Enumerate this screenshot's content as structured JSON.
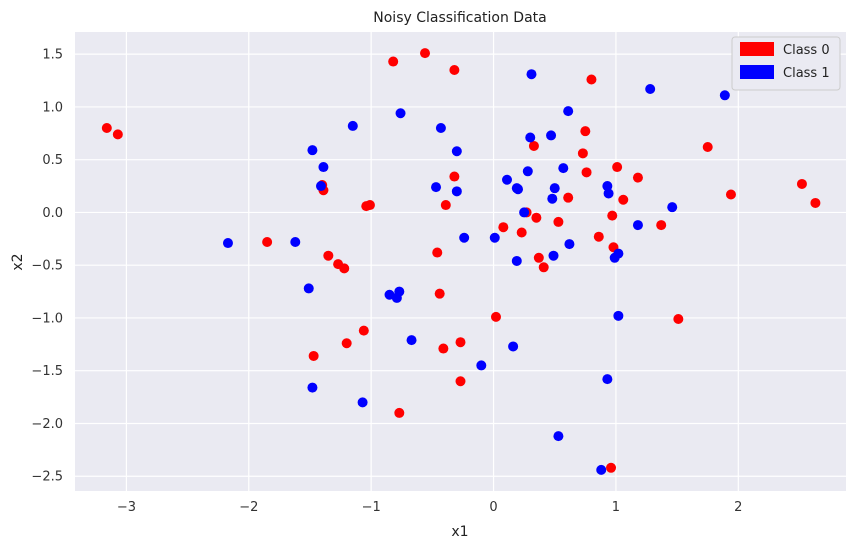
{
  "chart_data": {
    "type": "scatter",
    "title": "Noisy Classification Data",
    "xlabel": "x1",
    "ylabel": "x2",
    "xlim": [
      -3.42,
      2.88
    ],
    "ylim": [
      -2.64,
      1.71
    ],
    "xticks": [
      -3,
      -2,
      -1,
      0,
      1,
      2
    ],
    "yticks": [
      -2.5,
      -2.0,
      -1.5,
      -1.0,
      -0.5,
      0.0,
      0.5,
      1.0,
      1.5
    ],
    "grid": true,
    "legend_position": "top-right",
    "series": [
      {
        "name": "Class 0",
        "color": "#ff0000",
        "points": [
          [
            -3.16,
            0.8
          ],
          [
            -3.07,
            0.74
          ],
          [
            -1.85,
            -0.28
          ],
          [
            -1.4,
            0.26
          ],
          [
            -1.39,
            0.21
          ],
          [
            -1.35,
            -0.41
          ],
          [
            -1.27,
            -0.49
          ],
          [
            -1.22,
            -0.53
          ],
          [
            -1.2,
            -1.24
          ],
          [
            -1.47,
            -1.36
          ],
          [
            -1.06,
            -1.12
          ],
          [
            -1.04,
            0.06
          ],
          [
            -1.01,
            0.07
          ],
          [
            -0.82,
            1.43
          ],
          [
            -0.77,
            -1.9
          ],
          [
            -0.56,
            1.51
          ],
          [
            -0.46,
            -0.38
          ],
          [
            -0.44,
            -0.77
          ],
          [
            -0.41,
            -1.29
          ],
          [
            -0.39,
            0.07
          ],
          [
            -0.32,
            1.35
          ],
          [
            -0.32,
            0.34
          ],
          [
            -0.27,
            -1.23
          ],
          [
            -0.27,
            -1.6
          ],
          [
            0.02,
            -0.99
          ],
          [
            0.08,
            -0.14
          ],
          [
            0.23,
            -0.19
          ],
          [
            0.27,
            0.0
          ],
          [
            0.33,
            0.63
          ],
          [
            0.35,
            -0.05
          ],
          [
            0.37,
            -0.43
          ],
          [
            0.41,
            -0.52
          ],
          [
            0.53,
            -0.09
          ],
          [
            0.61,
            0.14
          ],
          [
            0.73,
            0.56
          ],
          [
            0.75,
            0.77
          ],
          [
            0.76,
            0.38
          ],
          [
            0.8,
            1.26
          ],
          [
            0.86,
            -0.23
          ],
          [
            0.97,
            -0.03
          ],
          [
            0.98,
            -0.33
          ],
          [
            1.01,
            0.43
          ],
          [
            1.06,
            0.12
          ],
          [
            1.18,
            0.33
          ],
          [
            1.37,
            -0.12
          ],
          [
            1.51,
            -1.01
          ],
          [
            1.75,
            0.62
          ],
          [
            1.94,
            0.17
          ],
          [
            2.52,
            0.27
          ],
          [
            2.63,
            0.09
          ],
          [
            0.96,
            -2.42
          ]
        ]
      },
      {
        "name": "Class 1",
        "color": "#0000ff",
        "points": [
          [
            -2.17,
            -0.29
          ],
          [
            -1.62,
            -0.28
          ],
          [
            -1.51,
            -0.72
          ],
          [
            -1.48,
            0.59
          ],
          [
            -1.48,
            -1.66
          ],
          [
            -1.41,
            0.25
          ],
          [
            -1.39,
            0.43
          ],
          [
            -1.15,
            0.82
          ],
          [
            -1.07,
            -1.8
          ],
          [
            -0.85,
            -0.78
          ],
          [
            -0.79,
            -0.81
          ],
          [
            -0.77,
            -0.75
          ],
          [
            -0.76,
            0.94
          ],
          [
            -0.67,
            -1.21
          ],
          [
            -0.47,
            0.24
          ],
          [
            -0.43,
            0.8
          ],
          [
            -0.3,
            0.58
          ],
          [
            -0.3,
            0.2
          ],
          [
            -0.24,
            -0.24
          ],
          [
            -0.1,
            -1.45
          ],
          [
            0.01,
            -0.24
          ],
          [
            0.11,
            0.31
          ],
          [
            0.16,
            -1.27
          ],
          [
            0.19,
            -0.46
          ],
          [
            0.19,
            0.23
          ],
          [
            0.2,
            0.22
          ],
          [
            0.25,
            0.0
          ],
          [
            0.28,
            0.39
          ],
          [
            0.3,
            0.71
          ],
          [
            0.31,
            1.31
          ],
          [
            0.47,
            0.73
          ],
          [
            0.48,
            0.13
          ],
          [
            0.49,
            -0.41
          ],
          [
            0.5,
            0.23
          ],
          [
            0.53,
            -2.12
          ],
          [
            0.57,
            0.42
          ],
          [
            0.61,
            0.96
          ],
          [
            0.62,
            -0.3
          ],
          [
            0.88,
            -2.44
          ],
          [
            0.93,
            0.25
          ],
          [
            0.93,
            -1.58
          ],
          [
            0.94,
            0.18
          ],
          [
            0.99,
            -0.43
          ],
          [
            1.02,
            -0.39
          ],
          [
            1.02,
            -0.98
          ],
          [
            1.18,
            -0.12
          ],
          [
            1.28,
            1.17
          ],
          [
            1.46,
            0.05
          ],
          [
            1.89,
            1.11
          ]
        ]
      }
    ]
  }
}
